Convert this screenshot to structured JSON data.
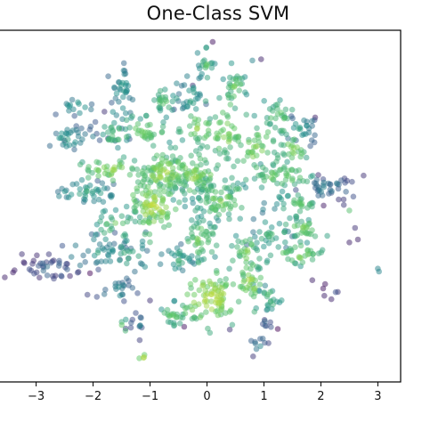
{
  "chart_data": {
    "type": "scatter",
    "title": "One-Class SVM",
    "xlabel": "",
    "ylabel": "",
    "xlim": [
      -3.65,
      3.4
    ],
    "ylim": [
      -3.0,
      3.05
    ],
    "xticks": [
      -3,
      -2,
      -1,
      0,
      1,
      2,
      3
    ],
    "xtick_labels": [
      "−3",
      "−2",
      "−1",
      "0",
      "1",
      "2",
      "3"
    ],
    "grid": false,
    "legend": "none",
    "colormap": "viridis",
    "colormap_colors": [
      "#440154",
      "#3b528b",
      "#21918c",
      "#5ec962",
      "#fde725"
    ],
    "point_alpha": 0.5,
    "clusters": [
      {
        "x": -0.75,
        "y": 0.6,
        "sx": 0.22,
        "sy": 0.18,
        "n": 90,
        "score": 0.85
      },
      {
        "x": -0.95,
        "y": 0.05,
        "sx": 0.2,
        "sy": 0.25,
        "n": 80,
        "score": 0.88
      },
      {
        "x": -0.2,
        "y": 0.55,
        "sx": 0.25,
        "sy": 0.18,
        "n": 80,
        "score": 0.82
      },
      {
        "x": 0.25,
        "y": 0.15,
        "sx": 0.22,
        "sy": 0.2,
        "n": 70,
        "score": 0.78
      },
      {
        "x": -0.1,
        "y": -0.55,
        "sx": 0.15,
        "sy": 0.18,
        "n": 50,
        "score": 0.8
      },
      {
        "x": 0.05,
        "y": -1.55,
        "sx": 0.25,
        "sy": 0.22,
        "n": 90,
        "score": 0.9
      },
      {
        "x": -0.6,
        "y": -1.85,
        "sx": 0.12,
        "sy": 0.12,
        "n": 25,
        "score": 0.75
      },
      {
        "x": 0.7,
        "y": -0.8,
        "sx": 0.12,
        "sy": 0.22,
        "n": 35,
        "score": 0.8
      },
      {
        "x": 1.1,
        "y": -0.5,
        "sx": 0.15,
        "sy": 0.2,
        "n": 30,
        "score": 0.65
      },
      {
        "x": 0.75,
        "y": -1.3,
        "sx": 0.12,
        "sy": 0.18,
        "n": 30,
        "score": 0.85
      },
      {
        "x": 1.1,
        "y": -1.55,
        "sx": 0.12,
        "sy": 0.12,
        "n": 20,
        "score": 0.7
      },
      {
        "x": 1.6,
        "y": -0.8,
        "sx": 0.22,
        "sy": 0.1,
        "n": 35,
        "score": 0.8
      },
      {
        "x": 1.6,
        "y": -0.35,
        "sx": 0.22,
        "sy": 0.1,
        "n": 30,
        "score": 0.78
      },
      {
        "x": 1.6,
        "y": 0.05,
        "sx": 0.2,
        "sy": 0.1,
        "n": 30,
        "score": 0.72
      },
      {
        "x": 1.3,
        "y": 0.55,
        "sx": 0.3,
        "sy": 0.12,
        "n": 45,
        "score": 0.78
      },
      {
        "x": 2.1,
        "y": 0.35,
        "sx": 0.3,
        "sy": 0.12,
        "n": 40,
        "score": 0.42
      },
      {
        "x": 0.9,
        "y": 1.0,
        "sx": 0.2,
        "sy": 0.22,
        "n": 40,
        "score": 0.82
      },
      {
        "x": 1.25,
        "y": 1.55,
        "sx": 0.15,
        "sy": 0.18,
        "n": 30,
        "score": 0.75
      },
      {
        "x": 1.65,
        "y": 1.35,
        "sx": 0.15,
        "sy": 0.12,
        "n": 25,
        "score": 0.55
      },
      {
        "x": 1.5,
        "y": 1.0,
        "sx": 0.15,
        "sy": 0.1,
        "n": 25,
        "score": 0.82
      },
      {
        "x": 0.35,
        "y": 1.35,
        "sx": 0.15,
        "sy": 0.25,
        "n": 40,
        "score": 0.85
      },
      {
        "x": 0.5,
        "y": 2.05,
        "sx": 0.12,
        "sy": 0.2,
        "n": 30,
        "score": 0.75
      },
      {
        "x": 0.0,
        "y": 2.45,
        "sx": 0.08,
        "sy": 0.18,
        "n": 20,
        "score": 0.7
      },
      {
        "x": -0.15,
        "y": 1.35,
        "sx": 0.15,
        "sy": 0.15,
        "n": 30,
        "score": 0.82
      },
      {
        "x": -0.3,
        "y": 1.95,
        "sx": 0.12,
        "sy": 0.15,
        "n": 25,
        "score": 0.6
      },
      {
        "x": -0.75,
        "y": 1.85,
        "sx": 0.12,
        "sy": 0.12,
        "n": 25,
        "score": 0.7
      },
      {
        "x": -1.1,
        "y": 1.3,
        "sx": 0.2,
        "sy": 0.12,
        "n": 35,
        "score": 0.8
      },
      {
        "x": -1.5,
        "y": 1.95,
        "sx": 0.1,
        "sy": 0.3,
        "n": 35,
        "score": 0.55
      },
      {
        "x": -1.6,
        "y": 1.25,
        "sx": 0.15,
        "sy": 0.15,
        "n": 25,
        "score": 0.7
      },
      {
        "x": -2.4,
        "y": 1.2,
        "sx": 0.25,
        "sy": 0.12,
        "n": 35,
        "score": 0.55
      },
      {
        "x": -2.3,
        "y": 1.75,
        "sx": 0.12,
        "sy": 0.08,
        "n": 15,
        "score": 0.6
      },
      {
        "x": -1.7,
        "y": 0.65,
        "sx": 0.25,
        "sy": 0.12,
        "n": 40,
        "score": 0.82
      },
      {
        "x": -2.1,
        "y": 0.25,
        "sx": 0.3,
        "sy": 0.1,
        "n": 40,
        "score": 0.6
      },
      {
        "x": -1.6,
        "y": -0.25,
        "sx": 0.25,
        "sy": 0.15,
        "n": 35,
        "score": 0.72
      },
      {
        "x": -1.9,
        "y": -0.75,
        "sx": 0.3,
        "sy": 0.15,
        "n": 35,
        "score": 0.55
      },
      {
        "x": -2.8,
        "y": -1.05,
        "sx": 0.3,
        "sy": 0.12,
        "n": 40,
        "score": 0.35
      },
      {
        "x": -1.35,
        "y": -0.8,
        "sx": 0.15,
        "sy": 0.15,
        "n": 25,
        "score": 0.65
      },
      {
        "x": -1.55,
        "y": -1.4,
        "sx": 0.15,
        "sy": 0.12,
        "n": 20,
        "score": 0.5
      },
      {
        "x": -1.2,
        "y": -2.0,
        "sx": 0.12,
        "sy": 0.12,
        "n": 12,
        "score": 0.4
      },
      {
        "x": -0.5,
        "y": -0.9,
        "sx": 0.15,
        "sy": 0.15,
        "n": 25,
        "score": 0.6
      },
      {
        "x": 0.9,
        "y": -2.35,
        "sx": 0.1,
        "sy": 0.1,
        "n": 10,
        "score": 0.45
      },
      {
        "x": 1.05,
        "y": -2.0,
        "sx": 0.08,
        "sy": 0.08,
        "n": 8,
        "score": 0.35
      },
      {
        "x": 2.2,
        "y": -1.45,
        "sx": 0.08,
        "sy": 0.08,
        "n": 6,
        "score": 0.3
      },
      {
        "x": -1.45,
        "y": -2.05,
        "sx": 0.05,
        "sy": 0.05,
        "n": 4,
        "score": 0.8
      },
      {
        "x": -1.15,
        "y": -2.55,
        "sx": 0.05,
        "sy": 0.05,
        "n": 4,
        "score": 0.92
      }
    ],
    "outliers": [
      {
        "x": 0.1,
        "y": 2.85,
        "score": 0.05
      },
      {
        "x": 0.95,
        "y": 2.55,
        "score": 0.1
      },
      {
        "x": 2.5,
        "y": -0.6,
        "score": 0.1
      },
      {
        "x": 2.6,
        "y": -0.35,
        "score": 0.15
      },
      {
        "x": 2.5,
        "y": -0.05,
        "score": 0.7
      },
      {
        "x": 3.02,
        "y": -1.1,
        "score": 0.45
      },
      {
        "x": 3.0,
        "y": -1.05,
        "score": 0.45
      },
      {
        "x": -3.55,
        "y": -1.2,
        "score": 0.1
      },
      {
        "x": -3.25,
        "y": -0.8,
        "score": 0.15
      },
      {
        "x": -2.1,
        "y": -1.5,
        "score": 0.2
      },
      {
        "x": 1.85,
        "y": -1.25,
        "score": 0.1
      },
      {
        "x": 2.75,
        "y": 0.55,
        "score": 0.15
      },
      {
        "x": -2.5,
        "y": 1.15,
        "score": 0.2
      },
      {
        "x": 1.9,
        "y": 1.55,
        "score": 0.1
      },
      {
        "x": -1.8,
        "y": 1.65,
        "score": 0.15
      },
      {
        "x": -0.25,
        "y": 2.1,
        "score": 0.15
      },
      {
        "x": 2.65,
        "y": -0.55,
        "score": 0.1
      },
      {
        "x": -1.0,
        "y": -1.6,
        "score": 0.15
      },
      {
        "x": 0.4,
        "y": -2.1,
        "score": 0.15
      },
      {
        "x": -0.4,
        "y": -2.05,
        "score": 0.05
      }
    ]
  }
}
